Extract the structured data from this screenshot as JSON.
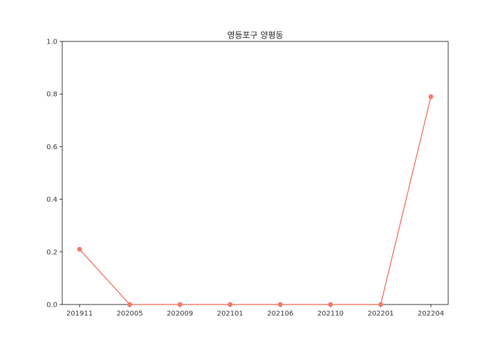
{
  "chart_data": {
    "type": "line",
    "title": "영등포구 양평동",
    "xlabel": "",
    "ylabel": "",
    "categories": [
      "201911",
      "202005",
      "202009",
      "202101",
      "202106",
      "202110",
      "202201",
      "202204"
    ],
    "series": [
      {
        "values": [
          0.21,
          0.0,
          0.0,
          0.0,
          0.0,
          0.0,
          0.0,
          0.79
        ],
        "color": "#f07b6e",
        "marker": "circle"
      }
    ],
    "ylim": [
      0,
      1.0
    ],
    "yticks": [
      "0.0",
      "0.2",
      "0.4",
      "0.6",
      "0.8",
      "1.0"
    ],
    "grid": false,
    "legend": "none"
  }
}
